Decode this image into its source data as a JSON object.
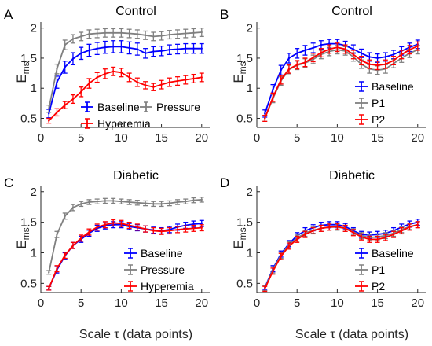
{
  "figure": {
    "x_axis_label": "Scale τ (data points)",
    "y_axis_label_main": "E",
    "y_axis_label_sub": "ms"
  },
  "chart_data": [
    {
      "type": "line",
      "panel_label": "A",
      "title": "Control",
      "xlim": [
        0,
        21
      ],
      "ylim": [
        0.35,
        2.1
      ],
      "xticks": [
        0,
        5,
        10,
        15,
        20
      ],
      "yticks": [
        0.5,
        1,
        1.5,
        2
      ],
      "legend_layout": "two-column-bottom-right",
      "x": [
        1,
        2,
        3,
        4,
        5,
        6,
        7,
        8,
        9,
        10,
        11,
        12,
        13,
        14,
        15,
        16,
        17,
        18,
        19,
        20
      ],
      "series": [
        {
          "name": "Baseline",
          "color": "#0000ff",
          "values": [
            0.58,
            1.1,
            1.35,
            1.49,
            1.58,
            1.63,
            1.66,
            1.68,
            1.69,
            1.69,
            1.67,
            1.65,
            1.58,
            1.61,
            1.62,
            1.64,
            1.65,
            1.66,
            1.66,
            1.66
          ],
          "err": [
            0.07,
            0.1,
            0.1,
            0.1,
            0.1,
            0.1,
            0.1,
            0.1,
            0.1,
            0.1,
            0.1,
            0.1,
            0.08,
            0.08,
            0.08,
            0.08,
            0.08,
            0.08,
            0.08,
            0.08
          ]
        },
        {
          "name": "Pressure",
          "color": "#808080",
          "values": [
            0.66,
            1.32,
            1.72,
            1.82,
            1.86,
            1.9,
            1.91,
            1.92,
            1.92,
            1.92,
            1.91,
            1.9,
            1.88,
            1.86,
            1.87,
            1.89,
            1.9,
            1.91,
            1.92,
            1.93
          ],
          "err": [
            0.06,
            0.08,
            0.08,
            0.07,
            0.07,
            0.07,
            0.07,
            0.07,
            0.07,
            0.07,
            0.07,
            0.07,
            0.07,
            0.07,
            0.07,
            0.07,
            0.07,
            0.07,
            0.07,
            0.07
          ]
        },
        {
          "name": "Hyperemia",
          "color": "#ff0000",
          "values": [
            0.46,
            0.6,
            0.72,
            0.82,
            0.94,
            1.08,
            1.18,
            1.24,
            1.28,
            1.26,
            1.18,
            1.1,
            1.05,
            1.02,
            1.06,
            1.1,
            1.12,
            1.14,
            1.16,
            1.18
          ],
          "err": [
            0.04,
            0.06,
            0.06,
            0.07,
            0.08,
            0.08,
            0.08,
            0.08,
            0.07,
            0.07,
            0.07,
            0.07,
            0.06,
            0.06,
            0.07,
            0.07,
            0.07,
            0.07,
            0.07,
            0.07
          ]
        }
      ]
    },
    {
      "type": "line",
      "panel_label": "B",
      "title": "Control",
      "xlim": [
        0,
        21
      ],
      "ylim": [
        0.35,
        2.1
      ],
      "xticks": [
        0,
        5,
        10,
        15,
        20
      ],
      "yticks": [
        0.5,
        1,
        1.5,
        2
      ],
      "legend_layout": "one-column-right",
      "x": [
        1,
        2,
        3,
        4,
        5,
        6,
        7,
        8,
        9,
        10,
        11,
        12,
        13,
        14,
        15,
        16,
        17,
        18,
        19,
        20
      ],
      "series": [
        {
          "name": "Baseline",
          "color": "#0000ff",
          "values": [
            0.58,
            0.98,
            1.3,
            1.5,
            1.58,
            1.63,
            1.67,
            1.72,
            1.74,
            1.74,
            1.71,
            1.65,
            1.58,
            1.52,
            1.5,
            1.52,
            1.56,
            1.62,
            1.68,
            1.73
          ],
          "err": [
            0.06,
            0.08,
            0.08,
            0.08,
            0.08,
            0.08,
            0.08,
            0.07,
            0.07,
            0.07,
            0.07,
            0.07,
            0.07,
            0.07,
            0.07,
            0.07,
            0.07,
            0.07,
            0.07,
            0.07
          ]
        },
        {
          "name": "P1",
          "color": "#808080",
          "values": [
            0.5,
            0.83,
            1.12,
            1.31,
            1.38,
            1.42,
            1.48,
            1.56,
            1.61,
            1.64,
            1.62,
            1.52,
            1.4,
            1.32,
            1.3,
            1.32,
            1.41,
            1.5,
            1.58,
            1.64
          ],
          "err": [
            0.05,
            0.07,
            0.07,
            0.07,
            0.07,
            0.07,
            0.07,
            0.07,
            0.07,
            0.07,
            0.07,
            0.07,
            0.07,
            0.07,
            0.07,
            0.07,
            0.07,
            0.07,
            0.07,
            0.07
          ]
        },
        {
          "name": "P2",
          "color": "#ff0000",
          "values": [
            0.5,
            0.85,
            1.14,
            1.32,
            1.39,
            1.43,
            1.51,
            1.59,
            1.65,
            1.68,
            1.65,
            1.56,
            1.46,
            1.4,
            1.38,
            1.4,
            1.46,
            1.56,
            1.64,
            1.7
          ],
          "err": [
            0.05,
            0.07,
            0.07,
            0.07,
            0.07,
            0.07,
            0.07,
            0.07,
            0.07,
            0.07,
            0.07,
            0.07,
            0.07,
            0.07,
            0.07,
            0.07,
            0.07,
            0.07,
            0.07,
            0.07
          ]
        }
      ]
    },
    {
      "type": "line",
      "panel_label": "C",
      "title": "Diabetic",
      "xlim": [
        0,
        21
      ],
      "ylim": [
        0.35,
        2.1
      ],
      "xticks": [
        0,
        5,
        10,
        15,
        20
      ],
      "yticks": [
        0.5,
        1,
        1.5,
        2
      ],
      "legend_layout": "one-column-bottom-right",
      "x": [
        1,
        2,
        3,
        4,
        5,
        6,
        7,
        8,
        9,
        10,
        11,
        12,
        13,
        14,
        15,
        16,
        17,
        18,
        19,
        20
      ],
      "series": [
        {
          "name": "Baseline",
          "color": "#0000ff",
          "values": [
            0.42,
            0.72,
            0.95,
            1.12,
            1.22,
            1.32,
            1.4,
            1.44,
            1.46,
            1.46,
            1.43,
            1.41,
            1.39,
            1.37,
            1.36,
            1.38,
            1.42,
            1.45,
            1.47,
            1.48
          ],
          "err": [
            0.03,
            0.05,
            0.05,
            0.05,
            0.05,
            0.05,
            0.05,
            0.05,
            0.05,
            0.05,
            0.05,
            0.05,
            0.05,
            0.05,
            0.05,
            0.05,
            0.05,
            0.05,
            0.05,
            0.05
          ]
        },
        {
          "name": "Pressure",
          "color": "#808080",
          "values": [
            0.68,
            1.3,
            1.6,
            1.74,
            1.8,
            1.83,
            1.84,
            1.85,
            1.85,
            1.84,
            1.83,
            1.82,
            1.81,
            1.8,
            1.8,
            1.81,
            1.83,
            1.84,
            1.86,
            1.87
          ],
          "err": [
            0.03,
            0.05,
            0.05,
            0.05,
            0.04,
            0.04,
            0.04,
            0.04,
            0.04,
            0.04,
            0.04,
            0.04,
            0.04,
            0.04,
            0.04,
            0.04,
            0.04,
            0.04,
            0.04,
            0.04
          ]
        },
        {
          "name": "Hyperemia",
          "color": "#ff0000",
          "values": [
            0.42,
            0.74,
            0.96,
            1.12,
            1.24,
            1.34,
            1.42,
            1.46,
            1.49,
            1.48,
            1.45,
            1.42,
            1.39,
            1.36,
            1.35,
            1.36,
            1.38,
            1.39,
            1.4,
            1.41
          ],
          "err": [
            0.03,
            0.05,
            0.05,
            0.05,
            0.05,
            0.05,
            0.05,
            0.05,
            0.05,
            0.05,
            0.05,
            0.05,
            0.05,
            0.05,
            0.05,
            0.05,
            0.05,
            0.05,
            0.05,
            0.05
          ]
        }
      ]
    },
    {
      "type": "line",
      "panel_label": "D",
      "title": "Diabetic",
      "xlim": [
        0,
        21
      ],
      "ylim": [
        0.35,
        2.1
      ],
      "xticks": [
        0,
        5,
        10,
        15,
        20
      ],
      "yticks": [
        0.5,
        1,
        1.5,
        2
      ],
      "legend_layout": "one-column-bottom-right",
      "x": [
        1,
        2,
        3,
        4,
        5,
        6,
        7,
        8,
        9,
        10,
        11,
        12,
        13,
        14,
        15,
        16,
        17,
        18,
        19,
        20
      ],
      "series": [
        {
          "name": "Baseline",
          "color": "#0000ff",
          "values": [
            0.43,
            0.74,
            0.98,
            1.15,
            1.28,
            1.36,
            1.41,
            1.45,
            1.46,
            1.46,
            1.43,
            1.36,
            1.3,
            1.29,
            1.3,
            1.32,
            1.36,
            1.42,
            1.47,
            1.5
          ],
          "err": [
            0.04,
            0.05,
            0.05,
            0.05,
            0.05,
            0.05,
            0.05,
            0.05,
            0.05,
            0.05,
            0.05,
            0.05,
            0.05,
            0.05,
            0.05,
            0.05,
            0.05,
            0.05,
            0.05,
            0.05
          ]
        },
        {
          "name": "P1",
          "color": "#808080",
          "values": [
            0.42,
            0.72,
            0.96,
            1.13,
            1.24,
            1.32,
            1.37,
            1.4,
            1.42,
            1.42,
            1.4,
            1.34,
            1.28,
            1.25,
            1.26,
            1.28,
            1.32,
            1.38,
            1.43,
            1.46
          ],
          "err": [
            0.04,
            0.05,
            0.05,
            0.05,
            0.05,
            0.05,
            0.05,
            0.05,
            0.05,
            0.05,
            0.05,
            0.05,
            0.05,
            0.05,
            0.05,
            0.05,
            0.05,
            0.05,
            0.05,
            0.05
          ]
        },
        {
          "name": "P2",
          "color": "#ff0000",
          "values": [
            0.41,
            0.7,
            0.94,
            1.11,
            1.22,
            1.3,
            1.36,
            1.4,
            1.42,
            1.43,
            1.4,
            1.33,
            1.26,
            1.22,
            1.22,
            1.25,
            1.3,
            1.36,
            1.42,
            1.46
          ],
          "err": [
            0.04,
            0.05,
            0.05,
            0.05,
            0.05,
            0.05,
            0.05,
            0.05,
            0.05,
            0.05,
            0.05,
            0.05,
            0.05,
            0.05,
            0.05,
            0.05,
            0.05,
            0.05,
            0.05,
            0.05
          ]
        }
      ]
    }
  ]
}
